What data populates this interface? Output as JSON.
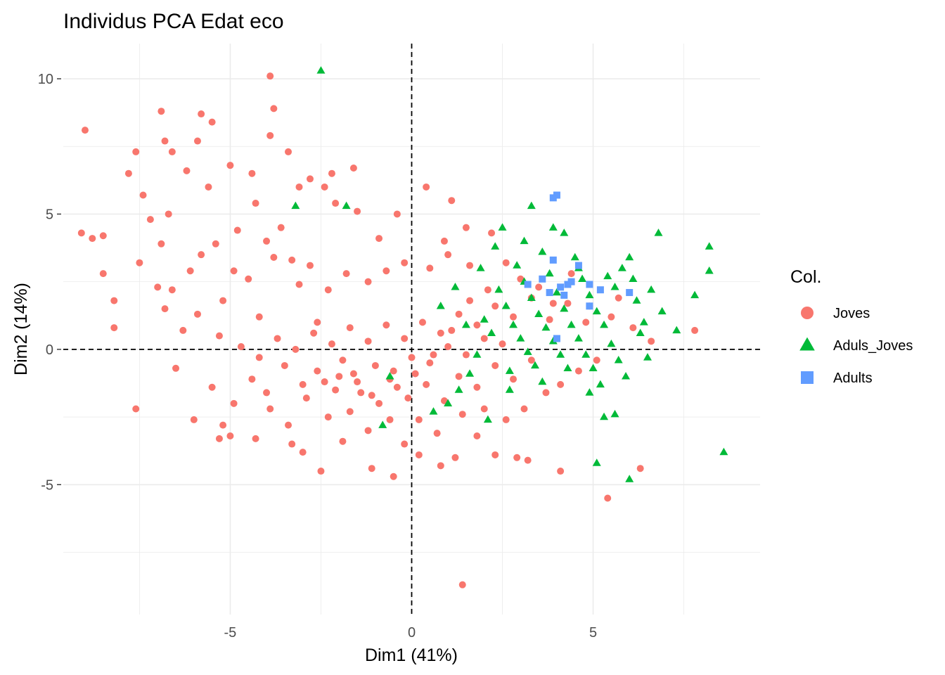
{
  "chart_data": {
    "type": "scatter",
    "title": "Individus PCA Edat eco",
    "xlabel": "Dim1 (41%)",
    "ylabel": "Dim2 (14%)",
    "xlim": [
      -9.6,
      9.6
    ],
    "ylim": [
      -9.8,
      11.3
    ],
    "x_ticks": [
      {
        "value": -5,
        "label": "-5"
      },
      {
        "value": 0,
        "label": "0"
      },
      {
        "value": 5,
        "label": "5"
      }
    ],
    "y_ticks": [
      {
        "value": -5,
        "label": "-5"
      },
      {
        "value": 0,
        "label": "0"
      },
      {
        "value": 5,
        "label": "5"
      },
      {
        "value": 10,
        "label": "10"
      }
    ],
    "grid": true,
    "reference_lines": {
      "x": 0,
      "y": 0,
      "style": "dashed"
    },
    "legend": {
      "title": "Col.",
      "position": "right"
    },
    "series": [
      {
        "name": "Joves",
        "marker": "circle",
        "color": "#F8766D",
        "points": [
          [
            -9,
            8.1
          ],
          [
            -6.9,
            8.8
          ],
          [
            -5.8,
            8.7
          ],
          [
            -5.5,
            8.4
          ],
          [
            -3.9,
            10.1
          ],
          [
            -3.8,
            8.9
          ],
          [
            -6.8,
            7.7
          ],
          [
            -7.6,
            7.3
          ],
          [
            -7.8,
            6.5
          ],
          [
            -7.4,
            5.7
          ],
          [
            -6.6,
            7.3
          ],
          [
            -6.2,
            6.6
          ],
          [
            -5.9,
            7.7
          ],
          [
            -5.6,
            6.0
          ],
          [
            -5.0,
            6.8
          ],
          [
            -4.4,
            6.5
          ],
          [
            -3.9,
            7.9
          ],
          [
            -3.4,
            7.3
          ],
          [
            -2.8,
            6.3
          ],
          [
            -2.2,
            6.5
          ],
          [
            -1.6,
            6.7
          ],
          [
            -2.4,
            6.0
          ],
          [
            -2.1,
            5.4
          ],
          [
            -1.5,
            5.1
          ],
          [
            -0.4,
            5.0
          ],
          [
            0.4,
            6.0
          ],
          [
            1.1,
            5.5
          ],
          [
            -3.1,
            6.0
          ],
          [
            -4.3,
            5.4
          ],
          [
            -9.1,
            4.3
          ],
          [
            -8.8,
            4.1
          ],
          [
            -8.5,
            4.2
          ],
          [
            -8.5,
            2.8
          ],
          [
            -8.2,
            1.8
          ],
          [
            -8.2,
            0.8
          ],
          [
            -7.6,
            -2.2
          ],
          [
            -6.0,
            -2.6
          ],
          [
            -5.2,
            -2.8
          ],
          [
            -5.3,
            -3.3
          ],
          [
            -5.0,
            -3.2
          ],
          [
            -4.3,
            -3.3
          ],
          [
            -3.3,
            -3.5
          ],
          [
            -2.5,
            -4.5
          ],
          [
            -1.1,
            -4.4
          ],
          [
            -0.5,
            -4.7
          ],
          [
            0.2,
            -3.9
          ],
          [
            0.8,
            -4.3
          ],
          [
            1.2,
            -4.0
          ],
          [
            2.3,
            -3.9
          ],
          [
            2.9,
            -4.0
          ],
          [
            3.2,
            -4.1
          ],
          [
            4.1,
            -4.5
          ],
          [
            6.3,
            -4.4
          ],
          [
            5.4,
            -5.5
          ],
          [
            1.4,
            -8.7
          ],
          [
            7.8,
            0.7
          ],
          [
            -7.2,
            4.8
          ],
          [
            -6.7,
            5.0
          ],
          [
            -6.9,
            3.9
          ],
          [
            -7.5,
            3.2
          ],
          [
            -7.0,
            2.3
          ],
          [
            -6.8,
            1.5
          ],
          [
            -6.3,
            0.7
          ],
          [
            -6.5,
            -0.7
          ],
          [
            -5.8,
            3.5
          ],
          [
            -5.4,
            3.9
          ],
          [
            -5.2,
            1.8
          ],
          [
            -4.5,
            2.6
          ],
          [
            -4.2,
            1.2
          ],
          [
            -3.8,
            3.4
          ],
          [
            -3.1,
            2.4
          ],
          [
            -2.6,
            1.0
          ],
          [
            -6.6,
            2.2
          ],
          [
            -6.1,
            2.9
          ],
          [
            -5.9,
            1.3
          ],
          [
            -5.3,
            0.5
          ],
          [
            -4.9,
            2.9
          ],
          [
            -4.8,
            4.4
          ],
          [
            -4.0,
            4.0
          ],
          [
            -3.6,
            4.5
          ],
          [
            -3.3,
            3.3
          ],
          [
            -2.8,
            3.1
          ],
          [
            -2.3,
            2.2
          ],
          [
            -1.8,
            2.8
          ],
          [
            -1.2,
            2.5
          ],
          [
            -0.7,
            2.9
          ],
          [
            -0.2,
            3.2
          ],
          [
            0.5,
            3.0
          ],
          [
            1.0,
            3.5
          ],
          [
            1.6,
            3.1
          ],
          [
            2.2,
            4.3
          ],
          [
            1.5,
            4.5
          ],
          [
            2.6,
            3.2
          ],
          [
            3.0,
            2.6
          ],
          [
            3.5,
            2.3
          ],
          [
            3.9,
            1.7
          ],
          [
            4.4,
            2.8
          ],
          [
            4.9,
            1.6
          ],
          [
            5.5,
            1.2
          ],
          [
            5.7,
            1.9
          ],
          [
            6.1,
            0.8
          ],
          [
            6.6,
            0.3
          ],
          [
            0.9,
            4.0
          ],
          [
            -0.9,
            4.1
          ],
          [
            -5.5,
            -1.4
          ],
          [
            -4.9,
            -2.0
          ],
          [
            -4.4,
            -1.1
          ],
          [
            -3.9,
            -2.2
          ],
          [
            -3.4,
            -2.8
          ],
          [
            -2.9,
            -1.8
          ],
          [
            -2.3,
            -2.5
          ],
          [
            -1.7,
            -2.3
          ],
          [
            -1.2,
            -3.0
          ],
          [
            -0.6,
            -2.6
          ],
          [
            0.2,
            -2.6
          ],
          [
            0.7,
            -3.1
          ],
          [
            1.4,
            -2.4
          ],
          [
            2.0,
            -2.2
          ],
          [
            2.6,
            -2.6
          ],
          [
            3.1,
            -2.2
          ],
          [
            3.7,
            -1.6
          ],
          [
            4.1,
            -1.3
          ],
          [
            4.6,
            -0.8
          ],
          [
            5.1,
            -0.4
          ],
          [
            -1.9,
            -3.4
          ],
          [
            -0.2,
            -3.5
          ],
          [
            1.8,
            -3.2
          ],
          [
            -3.0,
            -3.8
          ],
          [
            -4.0,
            -1.6
          ],
          [
            -3.5,
            -0.6
          ],
          [
            -3.0,
            -1.3
          ],
          [
            -2.6,
            -0.8
          ],
          [
            -2.1,
            -1.5
          ],
          [
            -1.6,
            -0.9
          ],
          [
            -1.1,
            -1.7
          ],
          [
            -0.6,
            -1.1
          ],
          [
            -0.1,
            -1.8
          ],
          [
            0.4,
            -1.3
          ],
          [
            0.9,
            -1.9
          ],
          [
            1.3,
            -1.0
          ],
          [
            1.8,
            -1.4
          ],
          [
            2.3,
            -0.6
          ],
          [
            2.8,
            -1.1
          ],
          [
            3.3,
            -0.4
          ],
          [
            -4.7,
            0.1
          ],
          [
            -4.2,
            -0.3
          ],
          [
            -3.7,
            0.4
          ],
          [
            -3.2,
            0.0
          ],
          [
            -2.7,
            0.6
          ],
          [
            -2.2,
            0.2
          ],
          [
            -1.7,
            0.8
          ],
          [
            -1.2,
            0.3
          ],
          [
            -0.7,
            0.9
          ],
          [
            -0.2,
            0.4
          ],
          [
            0.3,
            1.0
          ],
          [
            0.8,
            0.6
          ],
          [
            1.3,
            1.3
          ],
          [
            1.8,
            0.9
          ],
          [
            2.3,
            1.6
          ],
          [
            2.8,
            1.2
          ],
          [
            3.3,
            1.9
          ],
          [
            3.8,
            1.1
          ],
          [
            4.3,
            1.7
          ],
          [
            4.8,
            1.0
          ],
          [
            -2.0,
            -1.0
          ],
          [
            -1.5,
            -1.2
          ],
          [
            -1.0,
            -0.6
          ],
          [
            -0.5,
            -0.8
          ],
          [
            0.0,
            -0.3
          ],
          [
            0.5,
            -0.5
          ],
          [
            1.0,
            0.1
          ],
          [
            1.5,
            -0.2
          ],
          [
            2.0,
            0.4
          ],
          [
            2.5,
            0.2
          ],
          [
            -2.4,
            -1.2
          ],
          [
            -1.9,
            -0.4
          ],
          [
            -1.4,
            -1.6
          ],
          [
            -0.9,
            -2.0
          ],
          [
            -0.4,
            -1.4
          ],
          [
            0.1,
            -0.9
          ],
          [
            0.6,
            -0.2
          ],
          [
            1.1,
            0.7
          ],
          [
            1.6,
            1.8
          ],
          [
            2.1,
            2.2
          ]
        ]
      },
      {
        "name": "Aduls_Joves",
        "marker": "triangle",
        "color": "#00BA38",
        "points": [
          [
            -2.5,
            10.3
          ],
          [
            -3.2,
            5.3
          ],
          [
            -1.8,
            5.3
          ],
          [
            3.3,
            5.3
          ],
          [
            3.9,
            4.5
          ],
          [
            4.2,
            4.3
          ],
          [
            6.8,
            4.3
          ],
          [
            8.2,
            3.8
          ],
          [
            8.2,
            2.9
          ],
          [
            7.8,
            2.0
          ],
          [
            7.3,
            0.7
          ],
          [
            8.6,
            -3.8
          ],
          [
            5.1,
            -4.2
          ],
          [
            6.0,
            -4.8
          ],
          [
            5.6,
            -2.4
          ],
          [
            5.3,
            -2.5
          ],
          [
            2.7,
            -1.5
          ],
          [
            -0.6,
            -1.0
          ],
          [
            -0.8,
            -2.8
          ],
          [
            2.5,
            4.5
          ],
          [
            6.0,
            3.4
          ],
          [
            6.6,
            2.2
          ],
          [
            6.9,
            1.4
          ],
          [
            6.3,
            0.6
          ],
          [
            2.9,
            3.1
          ],
          [
            3.1,
            2.5
          ],
          [
            3.3,
            1.9
          ],
          [
            3.5,
            1.3
          ],
          [
            3.7,
            0.8
          ],
          [
            3.9,
            0.3
          ],
          [
            4.1,
            -0.2
          ],
          [
            4.3,
            -0.7
          ],
          [
            4.5,
            3.4
          ],
          [
            4.7,
            2.6
          ],
          [
            4.9,
            2.0
          ],
          [
            5.1,
            1.4
          ],
          [
            5.3,
            0.9
          ],
          [
            5.5,
            0.2
          ],
          [
            5.7,
            -0.4
          ],
          [
            5.9,
            -1.0
          ],
          [
            2.4,
            2.2
          ],
          [
            2.6,
            1.6
          ],
          [
            2.8,
            0.9
          ],
          [
            3.0,
            0.4
          ],
          [
            3.2,
            -0.1
          ],
          [
            3.4,
            -0.6
          ],
          [
            3.6,
            -1.2
          ],
          [
            3.8,
            2.8
          ],
          [
            4.0,
            2.1
          ],
          [
            4.2,
            1.5
          ],
          [
            4.4,
            0.9
          ],
          [
            4.6,
            0.4
          ],
          [
            4.8,
            -0.2
          ],
          [
            5.0,
            -0.7
          ],
          [
            5.2,
            -1.3
          ],
          [
            5.4,
            2.7
          ],
          [
            2.0,
            1.1
          ],
          [
            2.2,
            0.6
          ],
          [
            1.8,
            -0.2
          ],
          [
            1.6,
            -0.9
          ],
          [
            1.3,
            -1.5
          ],
          [
            1.0,
            -2.0
          ],
          [
            0.6,
            -2.3
          ],
          [
            2.1,
            -2.6
          ],
          [
            6.2,
            1.8
          ],
          [
            6.4,
            1.0
          ],
          [
            6.1,
            2.6
          ],
          [
            5.8,
            3.0
          ],
          [
            5.6,
            2.3
          ],
          [
            4.6,
            3.0
          ],
          [
            3.6,
            3.6
          ],
          [
            3.1,
            4.0
          ],
          [
            2.3,
            3.8
          ],
          [
            1.9,
            3.0
          ],
          [
            1.2,
            2.3
          ],
          [
            0.8,
            1.6
          ],
          [
            1.5,
            0.9
          ],
          [
            2.7,
            -0.8
          ],
          [
            4.9,
            -1.6
          ],
          [
            6.5,
            -0.3
          ]
        ]
      },
      {
        "name": "Adults",
        "marker": "square",
        "color": "#619CFF",
        "points": [
          [
            3.9,
            5.6
          ],
          [
            4.0,
            5.7
          ],
          [
            4.6,
            3.1
          ],
          [
            4.3,
            2.4
          ],
          [
            4.1,
            2.3
          ],
          [
            4.4,
            2.5
          ],
          [
            3.6,
            2.6
          ],
          [
            3.2,
            2.4
          ],
          [
            4.9,
            2.4
          ],
          [
            5.2,
            2.2
          ],
          [
            6.0,
            2.1
          ],
          [
            3.8,
            2.1
          ],
          [
            4.2,
            2.0
          ],
          [
            4.9,
            1.6
          ],
          [
            4.0,
            0.4
          ],
          [
            3.9,
            3.3
          ]
        ]
      }
    ]
  }
}
